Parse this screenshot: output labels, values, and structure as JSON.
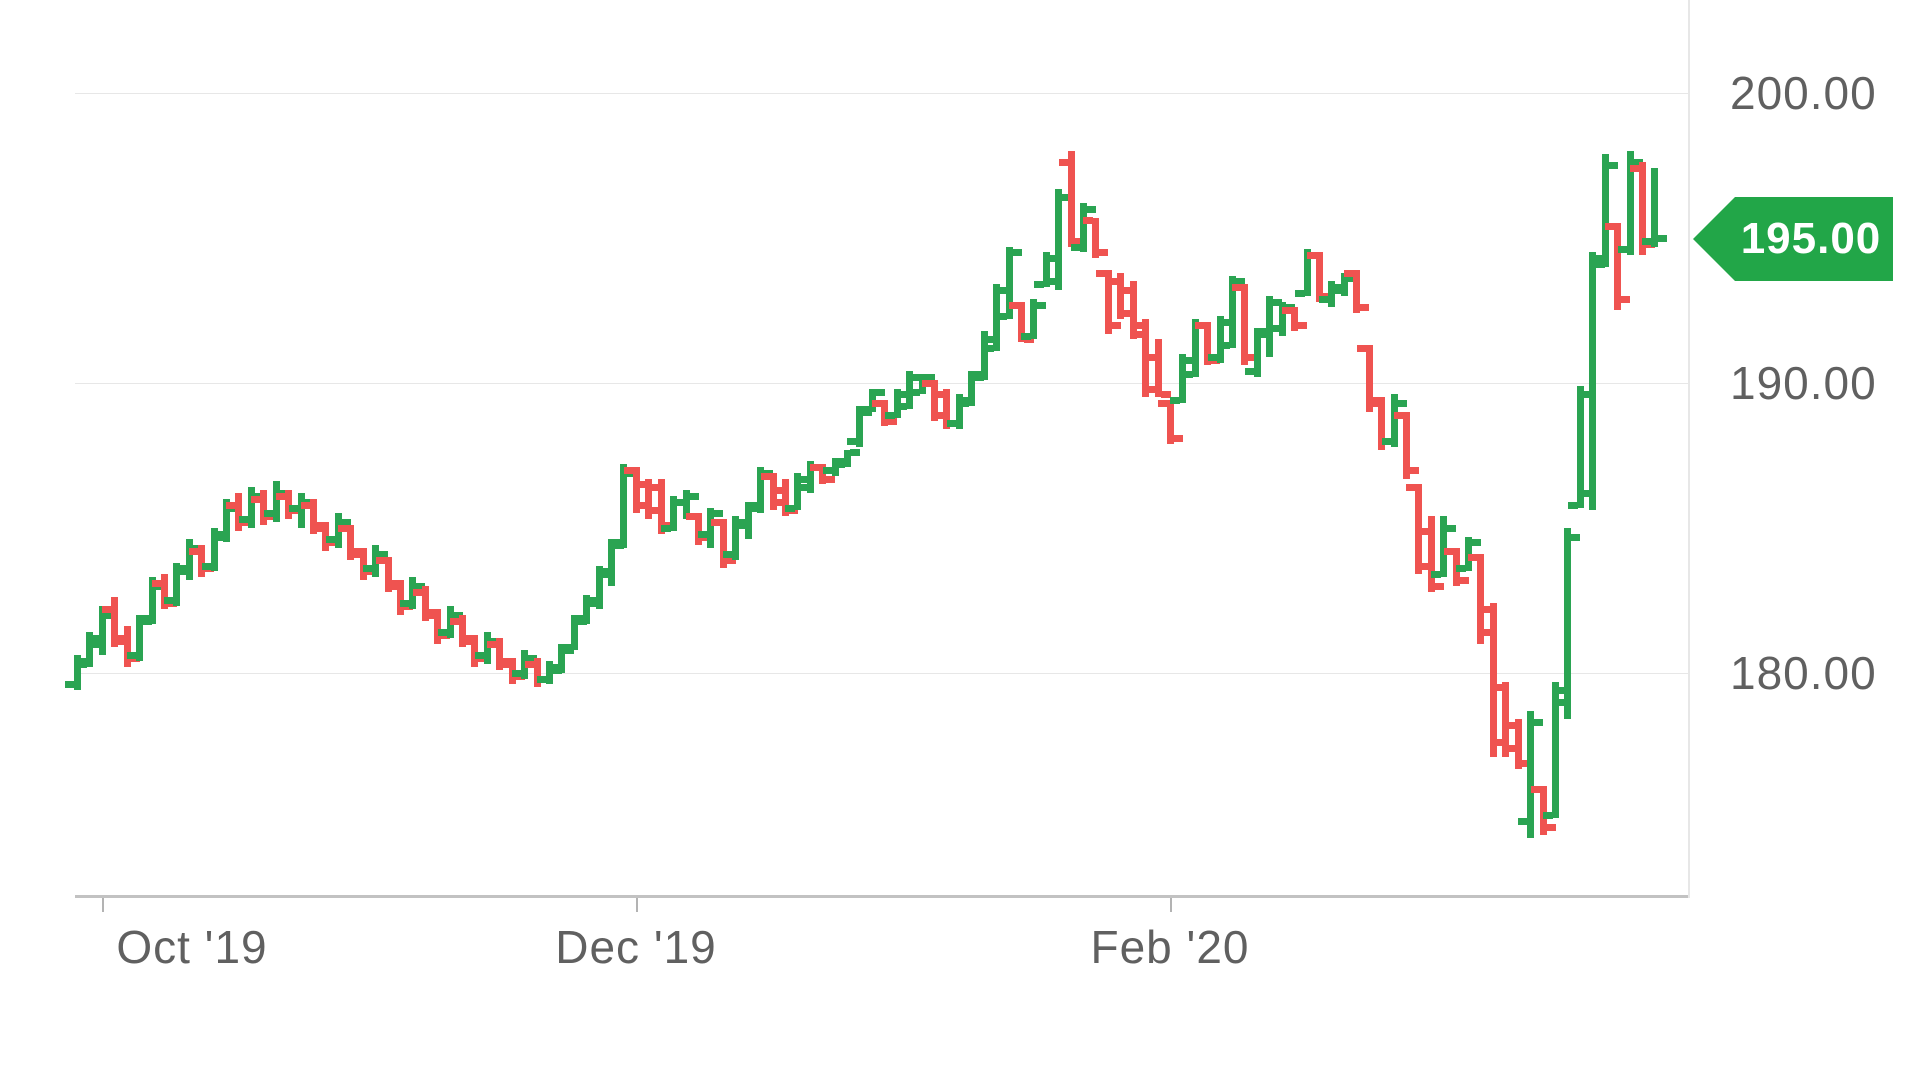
{
  "chart_data": {
    "type": "ohlc",
    "title": "",
    "last_price": {
      "label": "195.00",
      "value": 195.0
    },
    "y_axis": {
      "side": "right",
      "ticks": [
        {
          "label": "200.00",
          "value": 200
        },
        {
          "label": "190.00",
          "value": 190
        },
        {
          "label": "180.00",
          "value": 180
        }
      ],
      "visible_price_top": 203.2,
      "visible_price_bottom": 172.3
    },
    "x_axis": {
      "ticks": [
        {
          "label": "Oct '19",
          "bar_position": 2.0
        },
        {
          "label": "Dec '19",
          "bar_position": 45.0
        },
        {
          "label": "Feb '20",
          "bar_position": 88.0
        }
      ]
    },
    "colors": {
      "up": "#2aa452",
      "down": "#ef5350",
      "badge": "#22a648",
      "grid": "#e7e7e7",
      "axis": "#c2c2c2",
      "tick_mark": "#b3b3b3",
      "label_text": "#606060",
      "badge_text": "#ffffff",
      "background": "#ffffff"
    },
    "bars": [
      [
        179.6,
        180.6,
        179.4,
        180.4
      ],
      [
        180.3,
        181.4,
        180.2,
        181.2
      ],
      [
        181.0,
        182.3,
        180.6,
        182.0
      ],
      [
        182.2,
        182.6,
        180.9,
        181.1
      ],
      [
        181.2,
        181.6,
        180.2,
        180.5
      ],
      [
        180.6,
        182.0,
        180.4,
        181.8
      ],
      [
        181.9,
        183.3,
        181.7,
        183.0
      ],
      [
        183.1,
        183.4,
        182.2,
        182.4
      ],
      [
        182.5,
        183.8,
        182.3,
        183.5
      ],
      [
        183.6,
        184.6,
        183.2,
        184.3
      ],
      [
        184.2,
        184.4,
        183.3,
        183.6
      ],
      [
        183.7,
        185.0,
        183.5,
        184.7
      ],
      [
        184.8,
        186.0,
        184.5,
        185.7
      ],
      [
        185.8,
        186.2,
        184.9,
        185.2
      ],
      [
        185.3,
        186.4,
        185.0,
        186.1
      ],
      [
        186.0,
        186.3,
        185.1,
        185.4
      ],
      [
        185.5,
        186.6,
        185.2,
        186.2
      ],
      [
        186.1,
        186.3,
        185.3,
        185.6
      ],
      [
        185.7,
        186.2,
        185.0,
        185.9
      ],
      [
        185.8,
        186.0,
        184.8,
        185.1
      ],
      [
        185.0,
        185.2,
        184.2,
        184.5
      ],
      [
        184.6,
        185.5,
        184.3,
        185.2
      ],
      [
        185.0,
        185.1,
        183.9,
        184.2
      ],
      [
        184.1,
        184.3,
        183.2,
        183.5
      ],
      [
        183.6,
        184.4,
        183.3,
        184.1
      ],
      [
        183.9,
        184.0,
        182.8,
        183.1
      ],
      [
        183.0,
        183.2,
        182.0,
        182.3
      ],
      [
        182.4,
        183.3,
        182.2,
        183.0
      ],
      [
        182.8,
        183.0,
        181.8,
        182.1
      ],
      [
        182.0,
        182.2,
        181.0,
        181.3
      ],
      [
        181.4,
        182.3,
        181.2,
        182.0
      ],
      [
        181.8,
        182.0,
        180.9,
        181.2
      ],
      [
        181.1,
        181.3,
        180.2,
        180.5
      ],
      [
        180.6,
        181.4,
        180.3,
        181.1
      ],
      [
        181.0,
        181.2,
        180.1,
        180.4
      ],
      [
        180.3,
        180.5,
        179.6,
        179.9
      ],
      [
        180.0,
        180.8,
        179.8,
        180.5
      ],
      [
        180.3,
        180.5,
        179.5,
        179.8
      ],
      [
        179.8,
        180.4,
        179.6,
        180.1
      ],
      [
        180.2,
        181.0,
        180.0,
        180.8
      ],
      [
        180.9,
        182.0,
        180.8,
        181.8
      ],
      [
        181.9,
        182.7,
        181.7,
        182.5
      ],
      [
        182.4,
        183.7,
        182.2,
        183.5
      ],
      [
        183.4,
        184.6,
        183.0,
        184.4
      ],
      [
        184.5,
        187.2,
        184.3,
        186.9
      ],
      [
        187.0,
        187.1,
        185.5,
        185.8
      ],
      [
        186.5,
        186.7,
        185.3,
        185.6
      ],
      [
        186.4,
        186.7,
        184.8,
        185.1
      ],
      [
        185.0,
        186.1,
        184.9,
        185.9
      ],
      [
        185.9,
        186.3,
        185.3,
        186.1
      ],
      [
        185.4,
        185.5,
        184.4,
        184.7
      ],
      [
        184.8,
        185.7,
        184.3,
        185.5
      ],
      [
        185.2,
        185.3,
        183.6,
        183.9
      ],
      [
        184.1,
        185.4,
        183.9,
        185.2
      ],
      [
        185.1,
        185.9,
        184.6,
        185.7
      ],
      [
        185.8,
        187.1,
        185.5,
        186.9
      ],
      [
        186.8,
        186.9,
        185.6,
        185.9
      ],
      [
        186.3,
        186.7,
        185.4,
        185.6
      ],
      [
        185.7,
        186.9,
        185.6,
        186.7
      ],
      [
        186.4,
        187.3,
        186.2,
        187.1
      ],
      [
        187.1,
        187.2,
        186.5,
        186.7
      ],
      [
        187.0,
        187.4,
        186.8,
        187.3
      ],
      [
        187.2,
        187.7,
        187.1,
        187.6
      ],
      [
        188.0,
        189.2,
        187.8,
        189.0
      ],
      [
        189.1,
        189.8,
        189.0,
        189.7
      ],
      [
        189.3,
        189.4,
        188.5,
        188.7
      ],
      [
        188.9,
        189.8,
        188.8,
        189.6
      ],
      [
        189.2,
        190.4,
        189.1,
        190.2
      ],
      [
        189.7,
        190.3,
        189.6,
        190.2
      ],
      [
        190.0,
        190.1,
        188.7,
        188.9
      ],
      [
        189.6,
        189.8,
        188.4,
        188.6
      ],
      [
        188.6,
        189.6,
        188.4,
        189.4
      ],
      [
        189.3,
        190.4,
        189.2,
        190.2
      ],
      [
        190.3,
        191.8,
        190.1,
        191.5
      ],
      [
        191.2,
        193.4,
        191.1,
        193.2
      ],
      [
        192.3,
        194.7,
        192.2,
        194.5
      ],
      [
        192.7,
        192.8,
        191.4,
        191.5
      ],
      [
        191.6,
        192.9,
        191.5,
        192.7
      ],
      [
        193.4,
        194.5,
        193.3,
        194.3
      ],
      [
        193.5,
        196.7,
        193.2,
        196.4
      ],
      [
        197.6,
        198.0,
        194.7,
        194.9
      ],
      [
        194.7,
        196.2,
        194.5,
        196.0
      ],
      [
        195.6,
        195.7,
        194.3,
        194.5
      ],
      [
        193.8,
        193.9,
        191.7,
        192.0
      ],
      [
        193.5,
        193.8,
        192.2,
        192.4
      ],
      [
        193.2,
        193.5,
        191.5,
        191.7
      ],
      [
        192.0,
        192.2,
        189.5,
        189.8
      ],
      [
        190.9,
        191.5,
        189.5,
        189.6
      ],
      [
        189.3,
        189.4,
        187.9,
        188.1
      ],
      [
        189.4,
        191.0,
        189.3,
        190.8
      ],
      [
        190.3,
        192.2,
        190.2,
        192.0
      ],
      [
        192.0,
        192.1,
        190.6,
        190.8
      ],
      [
        190.9,
        192.3,
        190.7,
        192.1
      ],
      [
        191.3,
        193.7,
        191.2,
        193.5
      ],
      [
        193.3,
        193.4,
        190.6,
        190.9
      ],
      [
        190.4,
        191.9,
        190.2,
        191.7
      ],
      [
        191.8,
        193.0,
        190.9,
        192.8
      ],
      [
        191.9,
        192.8,
        191.6,
        192.6
      ],
      [
        192.5,
        192.6,
        191.8,
        192.0
      ],
      [
        193.1,
        194.6,
        193.0,
        194.4
      ],
      [
        194.4,
        194.5,
        192.8,
        193.0
      ],
      [
        192.9,
        193.5,
        192.6,
        193.3
      ],
      [
        193.2,
        193.8,
        193.0,
        193.6
      ],
      [
        193.8,
        193.9,
        192.4,
        192.6
      ],
      [
        191.2,
        191.3,
        189.0,
        189.3
      ],
      [
        189.4,
        189.5,
        187.7,
        188.0
      ],
      [
        188.0,
        189.6,
        187.8,
        189.3
      ],
      [
        188.9,
        189.0,
        186.7,
        187.0
      ],
      [
        186.4,
        186.5,
        183.4,
        183.7
      ],
      [
        184.9,
        185.4,
        182.8,
        183.0
      ],
      [
        183.4,
        185.4,
        183.3,
        185.0
      ],
      [
        184.2,
        184.3,
        183.0,
        183.2
      ],
      [
        183.6,
        184.7,
        183.5,
        184.5
      ],
      [
        184.0,
        184.1,
        181.0,
        181.4
      ],
      [
        182.2,
        182.4,
        177.1,
        177.6
      ],
      [
        179.5,
        179.7,
        177.1,
        177.4
      ],
      [
        178.2,
        178.4,
        176.7,
        176.9
      ],
      [
        174.9,
        178.7,
        174.3,
        178.3
      ],
      [
        176.0,
        176.1,
        174.4,
        174.7
      ],
      [
        175.1,
        179.7,
        175.0,
        179.4
      ],
      [
        179.0,
        185.0,
        178.4,
        184.7
      ],
      [
        185.8,
        189.9,
        185.7,
        189.6
      ],
      [
        186.2,
        194.5,
        185.6,
        194.1
      ],
      [
        194.3,
        197.9,
        194.0,
        197.5
      ],
      [
        195.4,
        195.5,
        192.5,
        192.9
      ],
      [
        194.6,
        198.0,
        194.4,
        197.6
      ],
      [
        197.4,
        197.6,
        194.4,
        194.8
      ],
      [
        194.9,
        197.4,
        194.7,
        195.0
      ]
    ]
  }
}
